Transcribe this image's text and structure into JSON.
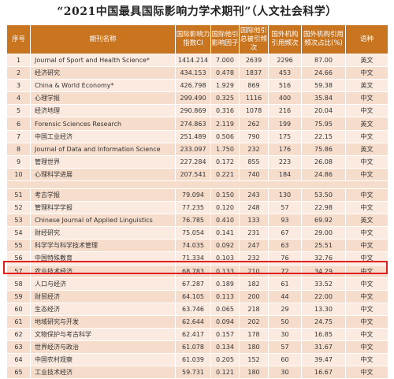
{
  "title": "“2021中国最具国际影响力学术期刊”（人文社会科学）",
  "headers": [
    "序号",
    "期刊名称",
    "国际影响力指数CI",
    "国际他引影响因子",
    "国际他引总被引频次",
    "国外机构引用频次",
    "国外机构引用频次占比(%)",
    "语种"
  ],
  "rows_top": [
    [
      "1",
      "Journal of Sport and Health Science*",
      "1414.214",
      "7.000",
      "2639",
      "2296",
      "87.00",
      "英文"
    ],
    [
      "2",
      "经济研究",
      "434.153",
      "0.478",
      "1837",
      "453",
      "24.66",
      "中文"
    ],
    [
      "3",
      "China & World Economy*",
      "426.798",
      "1.929",
      "869",
      "516",
      "59.38",
      "英文"
    ],
    [
      "4",
      "心理学报",
      "299.490",
      "0.325",
      "1116",
      "400",
      "35.84",
      "中文"
    ],
    [
      "5",
      "经济地理",
      "290.869",
      "0.316",
      "1078",
      "216",
      "20.04",
      "中文"
    ],
    [
      "6",
      "Forensic Sciences Research",
      "274.863",
      "2.119",
      "262",
      "199",
      "75.95",
      "英文"
    ],
    [
      "7",
      "中国工业经济",
      "251.489",
      "0.506",
      "790",
      "175",
      "22.15",
      "中文"
    ],
    [
      "8",
      "Journal of Data and Information Science",
      "233.097",
      "1.750",
      "232",
      "176",
      "75.86",
      "英文"
    ],
    [
      "9",
      "管理世界",
      "227.284",
      "0.172",
      "855",
      "223",
      "26.08",
      "中文"
    ],
    [
      "10",
      "心理科学进展",
      "207.541",
      "0.221",
      "740",
      "184",
      "24.86",
      "中文"
    ]
  ],
  "rows_bottom": [
    [
      "51",
      "考古学报",
      "79.094",
      "0.150",
      "243",
      "130",
      "53.50",
      "中文"
    ],
    [
      "52",
      "管理科学学报",
      "77.235",
      "0.120",
      "248",
      "57",
      "22.98",
      "中文"
    ],
    [
      "53",
      "Chinese Journal of Applied Linguistics",
      "76.785",
      "0.410",
      "133",
      "93",
      "69.92",
      "英文"
    ],
    [
      "54",
      "财经研究",
      "75.054",
      "0.141",
      "231",
      "67",
      "29.00",
      "中文"
    ],
    [
      "55",
      "科学学与科学技术管理",
      "74.035",
      "0.092",
      "247",
      "63",
      "25.51",
      "中文"
    ],
    [
      "56",
      "中国特殊教育",
      "71.334",
      "0.103",
      "232",
      "76",
      "32.76",
      "中文"
    ],
    [
      "57",
      "农业技术经济",
      "68.783",
      "0.133",
      "210",
      "72",
      "34.29",
      "中文"
    ],
    [
      "58",
      "人口与经济",
      "67.287",
      "0.189",
      "182",
      "61",
      "33.52",
      "中文"
    ],
    [
      "59",
      "财贸经济",
      "64.105",
      "0.113",
      "200",
      "44",
      "22.00",
      "中文"
    ],
    [
      "60",
      "生态经济",
      "63.746",
      "0.065",
      "218",
      "29",
      "13.30",
      "中文"
    ],
    [
      "61",
      "地域研究与开发",
      "62.644",
      "0.094",
      "202",
      "50",
      "24.75",
      "中文"
    ],
    [
      "62",
      "文物保护与考古科学",
      "62.417",
      "0.157",
      "178",
      "30",
      "16.85",
      "中文"
    ],
    [
      "63",
      "世界经济与政治",
      "61.078",
      "0.134",
      "180",
      "57",
      "31.67",
      "中文"
    ],
    [
      "64",
      "中国农村观察",
      "61.039",
      "0.205",
      "152",
      "60",
      "39.47",
      "中文"
    ],
    [
      "65",
      "工业技术经济",
      "59.731",
      "0.121",
      "180",
      "30",
      "16.67",
      "中文"
    ]
  ],
  "highlighted_row": "58",
  "colors": {
    "header_bg": "#c9741f",
    "row_light": "#fbeadf",
    "row_dark": "#f6dccb",
    "highlight": "#e0201c"
  }
}
